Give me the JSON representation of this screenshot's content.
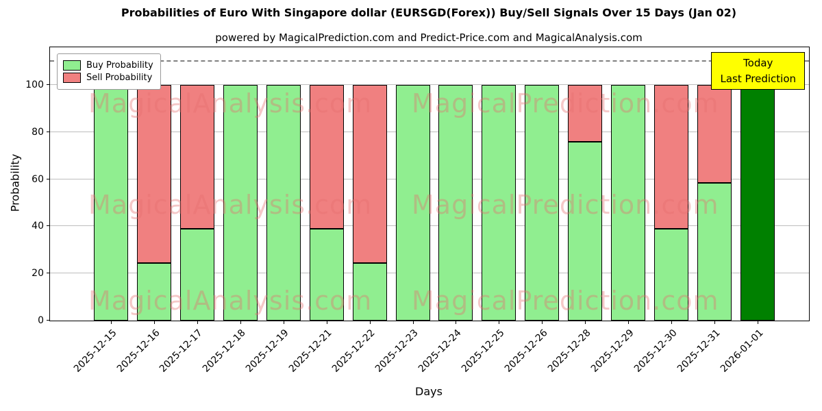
{
  "title": "Probabilities of Euro With Singapore dollar (EURSGD(Forex)) Buy/Sell Signals Over 15 Days (Jan 02)",
  "subtitle": "powered by MagicalPrediction.com and Predict-Price.com and MagicalAnalysis.com",
  "watermarks": [
    "MagicalAnalysis.com",
    "MagicalPrediction.com"
  ],
  "legend": [
    {
      "label": "Buy Probability",
      "color": "#90ee90"
    },
    {
      "label": "Sell Probability",
      "color": "#f08080"
    }
  ],
  "annotation": {
    "lines": [
      "Today",
      "Last Prediction"
    ],
    "background": "#ffff00"
  },
  "chart_data": {
    "type": "bar",
    "stacked": true,
    "title": "Probabilities of Euro With Singapore dollar (EURSGD(Forex)) Buy/Sell Signals Over 15 Days (Jan 02)",
    "xlabel": "Days",
    "ylabel": "Probability",
    "categories": [
      "2025-12-15",
      "2025-12-16",
      "2025-12-17",
      "2025-12-18",
      "2025-12-19",
      "2025-12-21",
      "2025-12-22",
      "2025-12-23",
      "2025-12-24",
      "2025-12-25",
      "2025-12-26",
      "2025-12-28",
      "2025-12-29",
      "2025-12-30",
      "2025-12-31",
      "2026-01-01"
    ],
    "series": [
      {
        "name": "Buy Probability",
        "color": "#90ee90",
        "values": [
          100,
          24.5,
          39,
          100,
          100,
          39,
          24.5,
          100,
          100,
          100,
          100,
          76,
          100,
          39,
          58.5,
          100
        ]
      },
      {
        "name": "Sell Probability",
        "color": "#f08080",
        "values": [
          0,
          75.5,
          61,
          0,
          0,
          61,
          75.5,
          0,
          0,
          0,
          0,
          24,
          0,
          61,
          41.5,
          0
        ]
      }
    ],
    "today_index": 15,
    "today_color": "#008000",
    "yticks": [
      0,
      20,
      40,
      60,
      80,
      100
    ],
    "ylim": [
      0,
      116
    ],
    "dashed_line_y": 110,
    "grid": true,
    "legend_position": "upper left"
  }
}
